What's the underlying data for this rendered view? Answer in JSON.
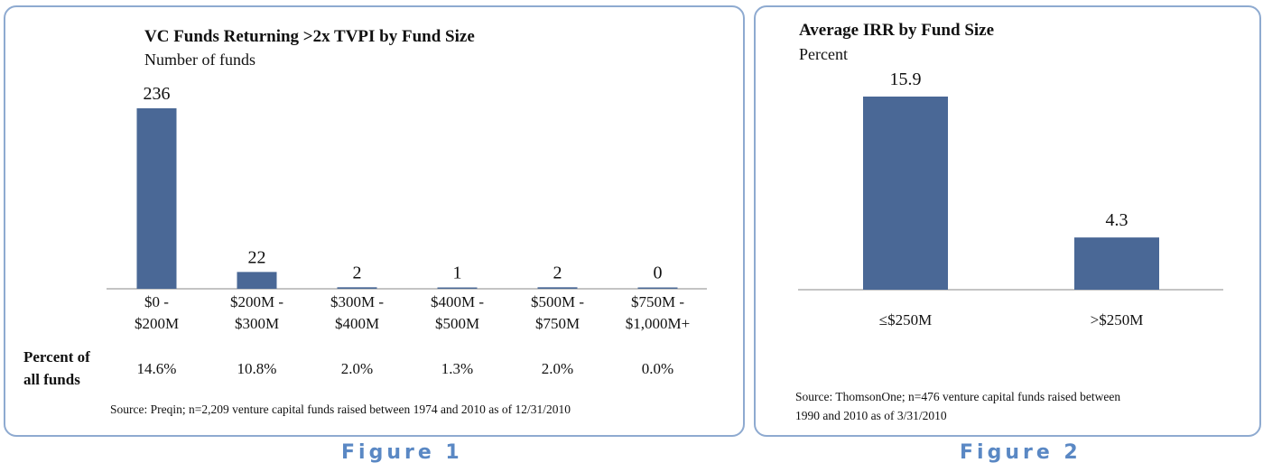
{
  "figure1": {
    "caption": "Figure 1",
    "chart_data": {
      "type": "bar",
      "title": "VC Funds Returning >2x TVPI by Fund Size",
      "subtitle": "Number of funds",
      "categories": [
        [
          "$0 -",
          "$200M"
        ],
        [
          "$200M -",
          "$300M"
        ],
        [
          "$300M -",
          "$400M"
        ],
        [
          "$400M -",
          "$500M"
        ],
        [
          "$500M -",
          "$750M"
        ],
        [
          "$750M -",
          "$1,000M+"
        ]
      ],
      "values": [
        236,
        22,
        2,
        1,
        2,
        0
      ],
      "value_labels": [
        "236",
        "22",
        "2",
        "1",
        "2",
        "0"
      ],
      "ylim": [
        0,
        236
      ],
      "bar_color": "#4a6896",
      "grid": false
    },
    "percent_row": {
      "label_line1": "Percent of",
      "label_line2": "all funds",
      "values": [
        "14.6%",
        "10.8%",
        "2.0%",
        "1.3%",
        "2.0%",
        "0.0%"
      ]
    },
    "source": "Source:  Preqin; n=2,209 venture capital funds raised between 1974 and 2010 as of 12/31/2010"
  },
  "figure2": {
    "caption": "Figure 2",
    "chart_data": {
      "type": "bar",
      "title": "Average IRR by Fund Size",
      "subtitle": "Percent",
      "categories": [
        "≤$250M",
        ">$250M"
      ],
      "values": [
        15.9,
        4.3
      ],
      "value_labels": [
        "15.9",
        "4.3"
      ],
      "ylim": [
        0,
        15.9
      ],
      "bar_color": "#4a6896",
      "grid": false
    },
    "source_line1": "Source: ThomsonOne; n=476 venture capital funds raised between",
    "source_line2": "1990 and 2010 as of 3/31/2010"
  }
}
